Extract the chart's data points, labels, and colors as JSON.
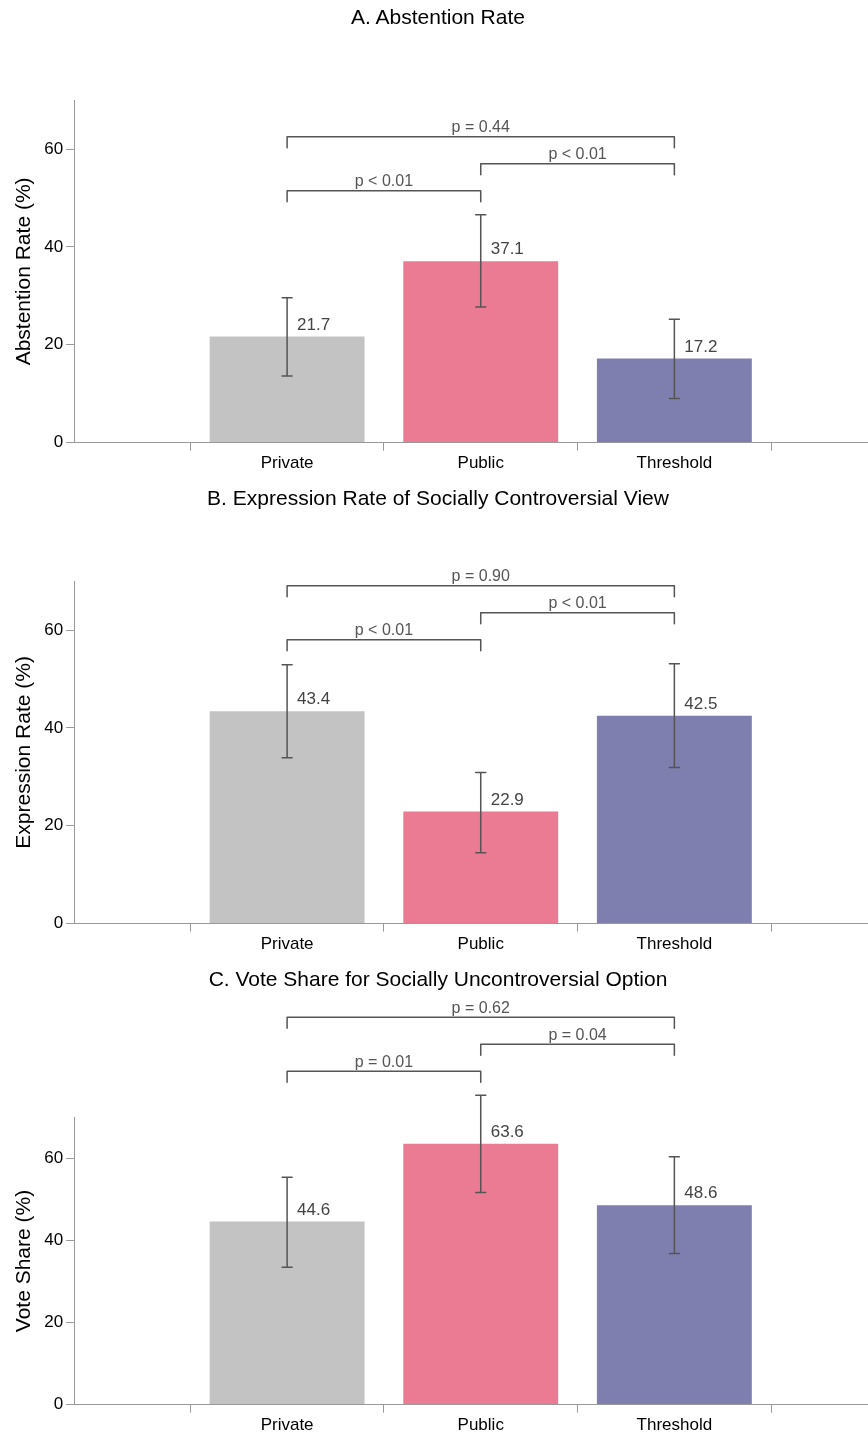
{
  "chart_data": [
    {
      "type": "bar",
      "title": "A. Abstention Rate",
      "ylabel": "Abstention Rate (%)",
      "categories": [
        "Private",
        "Public",
        "Threshold"
      ],
      "values": [
        21.7,
        37.1,
        17.2
      ],
      "colors": [
        "#c3c3c3",
        "#ea7b92",
        "#7e7fae"
      ],
      "errors": [
        [
          13.6,
          29.6
        ],
        [
          27.7,
          46.6
        ],
        [
          9.0,
          25.2
        ]
      ],
      "ylim": [
        0,
        70
      ],
      "yticks": [
        0,
        20,
        40,
        60
      ],
      "data_labels": true,
      "annotations": [
        "p < 0.01",
        "p < 0.01",
        "p = 0.44"
      ]
    },
    {
      "type": "bar",
      "title": "B. Expression Rate of Socially Controversial View",
      "ylabel": "Expression Rate (%)",
      "categories": [
        "Private",
        "Public",
        "Threshold"
      ],
      "values": [
        43.4,
        22.9,
        42.5
      ],
      "colors": [
        "#c3c3c3",
        "#ea7b92",
        "#7e7fae"
      ],
      "errors": [
        [
          33.9,
          52.9
        ],
        [
          14.5,
          30.9
        ],
        [
          31.9,
          53.1
        ]
      ],
      "ylim": [
        0,
        70
      ],
      "yticks": [
        0,
        20,
        40,
        60
      ],
      "data_labels": true,
      "annotations": [
        "p < 0.01",
        "p < 0.01",
        "p = 0.90"
      ]
    },
    {
      "type": "bar",
      "title": "C. Vote Share for Socially Uncontroversial Option",
      "ylabel": "Vote Share (%)",
      "categories": [
        "Private",
        "Public",
        "Threshold"
      ],
      "values": [
        44.6,
        63.6,
        48.6
      ],
      "colors": [
        "#c3c3c3",
        "#ea7b92",
        "#7e7fae"
      ],
      "errors": [
        [
          33.5,
          55.4
        ],
        [
          51.7,
          75.4
        ],
        [
          36.8,
          60.4
        ]
      ],
      "ylim": [
        0,
        70
      ],
      "yticks": [
        0,
        20,
        40,
        60
      ],
      "data_labels": true,
      "annotations": [
        "p = 0.01",
        "p = 0.04",
        "p = 0.62"
      ]
    }
  ]
}
